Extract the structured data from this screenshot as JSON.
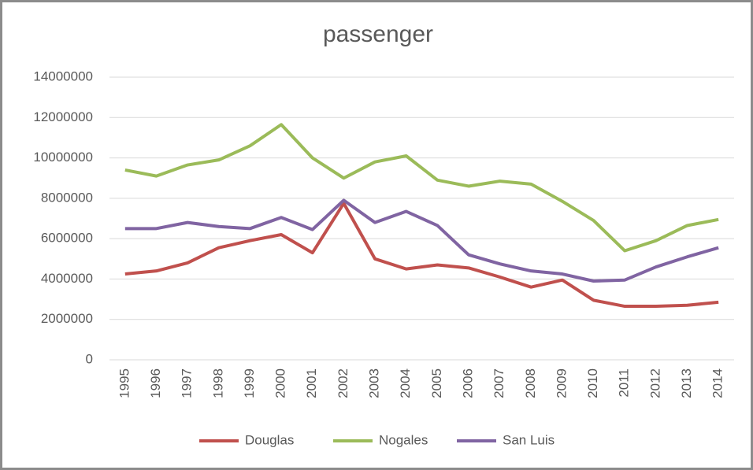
{
  "chart_data": {
    "type": "line",
    "title": "passenger",
    "categories": [
      "1995",
      "1996",
      "1997",
      "1998",
      "1999",
      "2000",
      "2001",
      "2002",
      "2003",
      "2004",
      "2005",
      "2006",
      "2007",
      "2008",
      "2009",
      "2010",
      "2011",
      "2012",
      "2013",
      "2014"
    ],
    "series": [
      {
        "name": "Douglas",
        "color": "#c0504d",
        "values": [
          4250000,
          4400000,
          4800000,
          5550000,
          5900000,
          6200000,
          5300000,
          7750000,
          5000000,
          4500000,
          4700000,
          4550000,
          4100000,
          3600000,
          3950000,
          2950000,
          2650000,
          2650000,
          2700000,
          2850000
        ]
      },
      {
        "name": "Nogales",
        "color": "#9bbb59",
        "values": [
          9400000,
          9100000,
          9650000,
          9900000,
          10600000,
          11650000,
          10000000,
          9000000,
          9800000,
          10100000,
          8900000,
          8600000,
          8850000,
          8700000,
          7850000,
          6900000,
          5400000,
          5900000,
          6650000,
          6950000
        ]
      },
      {
        "name": "San Luis",
        "color": "#8064a2",
        "values": [
          6500000,
          6500000,
          6800000,
          6600000,
          6500000,
          7050000,
          6450000,
          7900000,
          6800000,
          7350000,
          6650000,
          5200000,
          4750000,
          4400000,
          4250000,
          3900000,
          3950000,
          4600000,
          5100000,
          5550000
        ]
      }
    ],
    "ylim": [
      0,
      14000000
    ],
    "yticks": [
      0,
      2000000,
      4000000,
      6000000,
      8000000,
      10000000,
      12000000,
      14000000
    ],
    "grid": true,
    "legend": "bottom"
  }
}
